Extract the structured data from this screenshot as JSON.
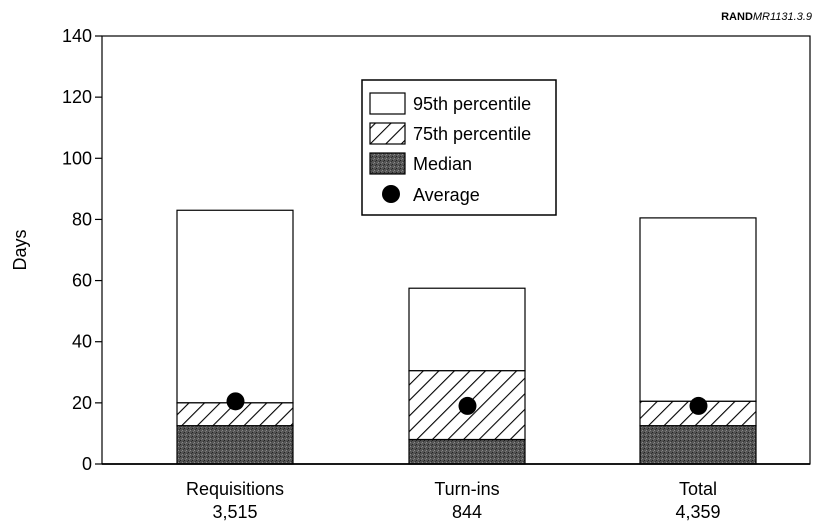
{
  "source_label": {
    "bold": "RAND",
    "rest": "MR1131.3.9"
  },
  "chart_data": {
    "type": "bar",
    "ylabel": "Days",
    "xlabel": "",
    "ylim": [
      0,
      140
    ],
    "yticks": [
      0,
      20,
      40,
      60,
      80,
      100,
      120,
      140
    ],
    "grid": false,
    "legend_position": "top-center",
    "categories": [
      {
        "name": "Requisitions",
        "count": "3,515"
      },
      {
        "name": "Turn-ins",
        "count": "844"
      },
      {
        "name": "Total",
        "count": "4,359"
      }
    ],
    "series": [
      {
        "name": "95th percentile",
        "values": [
          83,
          57.5,
          80.5
        ]
      },
      {
        "name": "75th percentile",
        "values": [
          20,
          30.5,
          20.5
        ]
      },
      {
        "name": "Median",
        "values": [
          12.5,
          8,
          12.5
        ]
      },
      {
        "name": "Average",
        "values": [
          20.5,
          19,
          19
        ]
      }
    ]
  },
  "colors": {
    "median": "#4a4a4a",
    "hatch": "#000000",
    "fill": "#ffffff",
    "marker": "#000000"
  }
}
